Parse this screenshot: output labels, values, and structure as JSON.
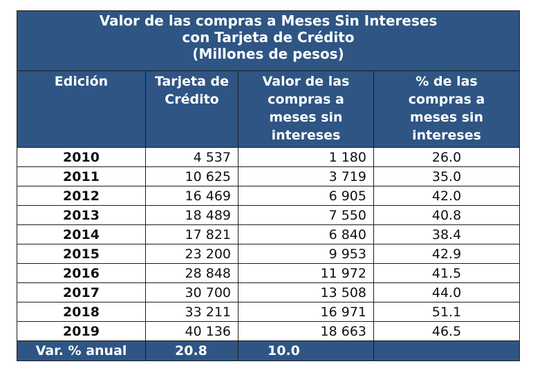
{
  "title": {
    "line1": "Valor de las compras a Meses Sin Intereses",
    "line2": "con Tarjeta de Crédito",
    "line3": "(Millones de pesos)"
  },
  "columns": [
    [
      "Edición"
    ],
    [
      "Tarjeta de",
      "Crédito"
    ],
    [
      "Valor de las",
      "compras a",
      "meses sin",
      "intereses"
    ],
    [
      "% de las",
      "compras a",
      "meses sin",
      "intereses"
    ]
  ],
  "rows": [
    [
      "2010",
      "4 537",
      "1 180",
      "26.0"
    ],
    [
      "2011",
      "10 625",
      "3 719",
      "35.0"
    ],
    [
      "2012",
      "16 469",
      "6 905",
      "42.0"
    ],
    [
      "2013",
      "18 489",
      "7 550",
      "40.8"
    ],
    [
      "2014",
      "17 821",
      "6 840",
      "38.4"
    ],
    [
      "2015",
      "23 200",
      "9 953",
      "42.9"
    ],
    [
      "2016",
      "28 848",
      "11 972",
      "41.5"
    ],
    [
      "2017",
      "30 700",
      "13 508",
      "44.0"
    ],
    [
      "2018",
      "33 211",
      "16 971",
      "51.1"
    ],
    [
      "2019",
      "40 136",
      "18 663",
      "46.5"
    ]
  ],
  "footer": {
    "label": "Var. % anual",
    "tarjeta": "20.8",
    "valor": "10.0",
    "pct": ""
  },
  "colors": {
    "header_bg": "#2e5584",
    "header_text": "#ffffff",
    "border": "#1c1c1c"
  }
}
